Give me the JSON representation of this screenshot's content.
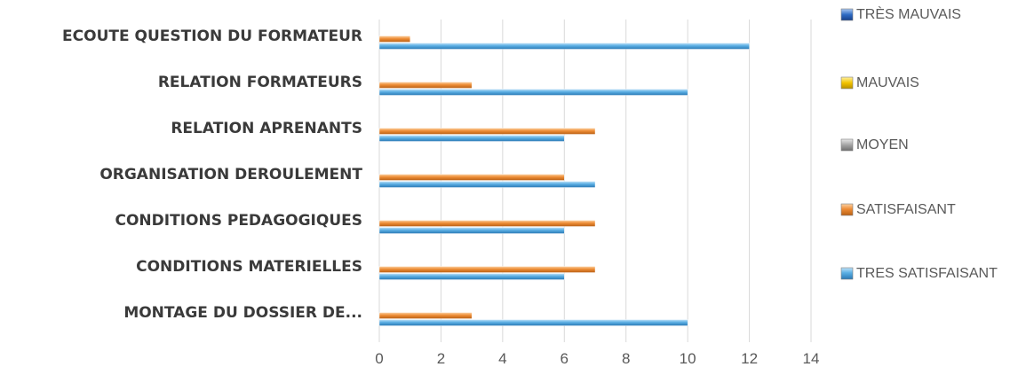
{
  "chart_data": {
    "type": "bar",
    "orientation": "horizontal",
    "categories": [
      "ECOUTE QUESTION DU FORMATEUR",
      "RELATION FORMATEURS",
      "RELATION APRENANTS",
      "ORGANISATION DEROULEMENT",
      "CONDITIONS PEDAGOGIQUES",
      "CONDITIONS MATERIELLES",
      "MONTAGE DU DOSSIER DE..."
    ],
    "series": [
      {
        "name": "TRES SATISFAISANT",
        "color": "#4a9fd8",
        "values": [
          12,
          10,
          6,
          7,
          6,
          6,
          10
        ]
      },
      {
        "name": "SATISFAISANT",
        "color": "#e8812a",
        "values": [
          1,
          3,
          7,
          6,
          7,
          7,
          3
        ]
      },
      {
        "name": "MOYEN",
        "color": "#a5a5a5",
        "values": [
          0,
          0,
          0,
          0,
          0,
          0,
          0
        ]
      },
      {
        "name": "MAUVAIS",
        "color": "#f2c300",
        "values": [
          0,
          0,
          0,
          0,
          0,
          0,
          0
        ]
      },
      {
        "name": "TRÈS MAUVAIS",
        "color": "#2e6bc4",
        "values": [
          0,
          0,
          0,
          0,
          0,
          0,
          0
        ]
      }
    ],
    "legend_order": [
      "TRÈS MAUVAIS",
      "MAUVAIS",
      "MOYEN",
      "SATISFAISANT",
      "TRES SATISFAISANT"
    ],
    "xlim": [
      0,
      14
    ],
    "xticks": [
      0,
      2,
      4,
      6,
      8,
      10,
      12,
      14
    ],
    "grid": true,
    "legend_position": "right"
  }
}
